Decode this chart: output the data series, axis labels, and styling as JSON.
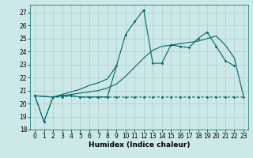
{
  "xlabel": "Humidex (Indice chaleur)",
  "ylabel": "",
  "background_color": "#cce8e8",
  "grid_color": "#aacfcf",
  "line_color": "#006666",
  "xlim": [
    -0.5,
    23.5
  ],
  "ylim": [
    18,
    27.6
  ],
  "yticks": [
    18,
    19,
    20,
    21,
    22,
    23,
    24,
    25,
    26,
    27
  ],
  "xticks": [
    0,
    1,
    2,
    3,
    4,
    5,
    6,
    7,
    8,
    9,
    10,
    11,
    12,
    13,
    14,
    15,
    16,
    17,
    18,
    19,
    20,
    21,
    22,
    23
  ],
  "series": [
    {
      "x": [
        0,
        1,
        2,
        3,
        4,
        5,
        6,
        7,
        8,
        9,
        10,
        11,
        12,
        13,
        14,
        15,
        16,
        17,
        18,
        19,
        20,
        21,
        22,
        23
      ],
      "y": [
        20.6,
        18.6,
        20.5,
        20.5,
        20.6,
        20.5,
        20.5,
        20.5,
        20.5,
        20.5,
        20.5,
        20.5,
        20.5,
        20.5,
        20.5,
        20.5,
        20.5,
        20.5,
        20.5,
        20.5,
        20.5,
        20.5,
        20.5,
        20.5
      ],
      "marker": true,
      "linestyle": "dashed"
    },
    {
      "x": [
        0,
        1,
        2,
        3,
        4,
        5,
        6,
        7,
        8,
        9,
        10,
        11,
        12,
        13,
        14,
        15,
        16,
        17,
        18,
        19,
        20,
        21,
        22
      ],
      "y": [
        20.6,
        18.6,
        20.5,
        20.6,
        20.6,
        20.5,
        20.5,
        20.5,
        20.5,
        22.9,
        25.3,
        26.3,
        27.2,
        23.1,
        23.1,
        24.5,
        24.4,
        24.3,
        25.0,
        25.5,
        24.4,
        23.3,
        22.9
      ],
      "marker": true,
      "linestyle": "solid"
    },
    {
      "x": [
        0,
        2,
        3,
        4,
        5,
        6,
        7,
        8,
        9
      ],
      "y": [
        20.6,
        20.5,
        20.7,
        20.9,
        21.1,
        21.4,
        21.6,
        21.9,
        22.9
      ],
      "marker": false,
      "linestyle": "solid"
    },
    {
      "x": [
        0,
        2,
        3,
        4,
        5,
        6,
        7,
        8,
        9,
        10,
        11,
        12,
        13,
        14,
        15,
        16,
        17,
        18,
        19,
        20,
        21,
        22,
        23
      ],
      "y": [
        20.6,
        20.5,
        20.6,
        20.7,
        20.8,
        20.9,
        21.0,
        21.2,
        21.5,
        22.1,
        22.8,
        23.5,
        24.1,
        24.4,
        24.5,
        24.6,
        24.7,
        24.8,
        25.0,
        25.2,
        24.5,
        23.5,
        20.6
      ],
      "marker": false,
      "linestyle": "solid"
    }
  ]
}
